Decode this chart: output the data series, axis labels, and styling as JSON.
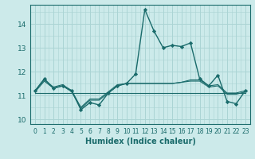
{
  "xlabel": "Humidex (Indice chaleur)",
  "ylabel": "",
  "background_color": "#cceaea",
  "grid_color": "#aad4d4",
  "line_color": "#1a6b6b",
  "xlim": [
    -0.5,
    23.5
  ],
  "ylim": [
    9.8,
    14.8
  ],
  "yticks": [
    10,
    11,
    12,
    13,
    14
  ],
  "xtick_labels": [
    "0",
    "1",
    "2",
    "3",
    "4",
    "5",
    "6",
    "7",
    "8",
    "9",
    "10",
    "11",
    "12",
    "13",
    "14",
    "15",
    "16",
    "17",
    "18",
    "19",
    "20",
    "21",
    "22",
    "23"
  ],
  "series": [
    [
      11.2,
      11.7,
      11.3,
      11.4,
      11.2,
      10.4,
      10.7,
      10.6,
      11.1,
      11.4,
      11.5,
      11.9,
      14.6,
      13.7,
      13.0,
      13.1,
      13.05,
      13.2,
      11.7,
      11.4,
      11.85,
      10.75,
      10.65,
      11.2
    ],
    [
      11.2,
      11.65,
      11.35,
      11.45,
      11.2,
      10.5,
      10.85,
      10.85,
      11.15,
      11.45,
      11.5,
      11.5,
      11.5,
      11.5,
      11.5,
      11.5,
      11.55,
      11.65,
      11.65,
      11.4,
      11.45,
      11.1,
      11.1,
      11.2
    ],
    [
      11.15,
      11.6,
      11.3,
      11.4,
      11.15,
      10.45,
      10.8,
      10.8,
      11.1,
      11.4,
      11.5,
      11.5,
      11.5,
      11.5,
      11.5,
      11.5,
      11.55,
      11.6,
      11.6,
      11.35,
      11.4,
      11.05,
      11.05,
      11.15
    ],
    [
      11.1,
      11.1,
      11.1,
      11.1,
      11.1,
      11.1,
      11.1,
      11.1,
      11.1,
      11.1,
      11.1,
      11.1,
      11.1,
      11.1,
      11.1,
      11.1,
      11.1,
      11.1,
      11.1,
      11.1,
      11.1,
      11.1,
      11.1,
      11.1
    ]
  ]
}
